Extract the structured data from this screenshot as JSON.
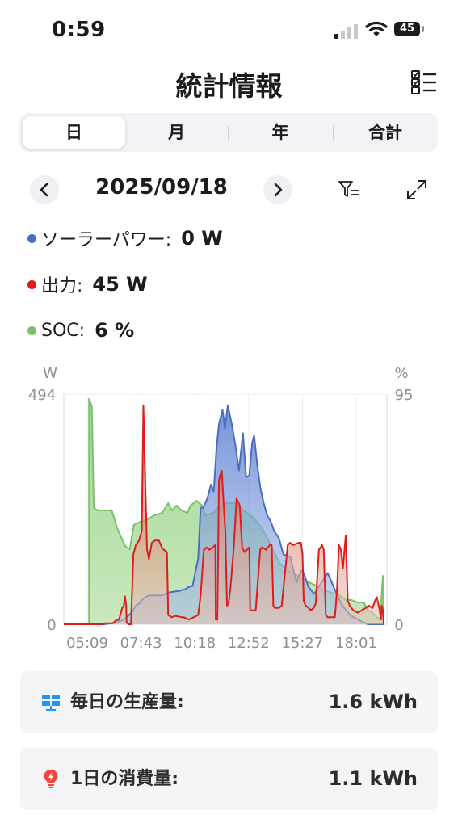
{
  "status_bar": {
    "time": "0:59",
    "battery": "45"
  },
  "header": {
    "title": "統計情報"
  },
  "tabs": [
    {
      "label": "日",
      "active": true
    },
    {
      "label": "月",
      "active": false
    },
    {
      "label": "年",
      "active": false
    },
    {
      "label": "合計",
      "active": false
    }
  ],
  "date_nav": {
    "date": "2025/09/18"
  },
  "legend": [
    {
      "label": "ソーラーパワー:",
      "value": "0 W",
      "color": "#4a6fbf"
    },
    {
      "label": "出力:",
      "value": "45 W",
      "color": "#e01b1b"
    },
    {
      "label": "SOC:",
      "value": "6 %",
      "color": "#7cc26b"
    }
  ],
  "chart_data": {
    "type": "area",
    "left_axis": {
      "unit": "W",
      "max_label": "494",
      "min_label": "0",
      "range": [
        0,
        494
      ]
    },
    "right_axis": {
      "unit": "%",
      "max_label": "95",
      "min_label": "0",
      "range": [
        0,
        95
      ]
    },
    "x_tick_labels": [
      "05:09",
      "07:43",
      "10:18",
      "12:52",
      "15:27",
      "18:01"
    ],
    "x_range_minutes": [
      300,
      1108
    ],
    "grid": true,
    "series": [
      {
        "name": "SOC",
        "color": "#7cc26b",
        "axis": "right",
        "points": [
          [
            363,
            0
          ],
          [
            363,
            93
          ],
          [
            370,
            90
          ],
          [
            375,
            48
          ],
          [
            385,
            47
          ],
          [
            403,
            47
          ],
          [
            420,
            47
          ],
          [
            433,
            40
          ],
          [
            443,
            36
          ],
          [
            455,
            32
          ],
          [
            465,
            31
          ],
          [
            475,
            41
          ],
          [
            486,
            42
          ],
          [
            506,
            43
          ],
          [
            526,
            45
          ],
          [
            546,
            46
          ],
          [
            561,
            50
          ],
          [
            570,
            47
          ],
          [
            582,
            49
          ],
          [
            594,
            47
          ],
          [
            609,
            46
          ],
          [
            617,
            49
          ],
          [
            632,
            51
          ],
          [
            646,
            49
          ],
          [
            653,
            45
          ],
          [
            674,
            46
          ],
          [
            684,
            48
          ],
          [
            705,
            50
          ],
          [
            728,
            50
          ],
          [
            741,
            48
          ],
          [
            759,
            46
          ],
          [
            774,
            44
          ],
          [
            794,
            40
          ],
          [
            811,
            35
          ],
          [
            825,
            30
          ],
          [
            841,
            25
          ],
          [
            860,
            22
          ],
          [
            885,
            20
          ],
          [
            905,
            18
          ],
          [
            930,
            16
          ],
          [
            950,
            14
          ],
          [
            970,
            13
          ],
          [
            990,
            12
          ],
          [
            1005,
            10
          ],
          [
            1020,
            10
          ],
          [
            1035,
            9
          ],
          [
            1050,
            9
          ],
          [
            1060,
            6
          ],
          [
            1070,
            5
          ],
          [
            1083,
            3
          ],
          [
            1091,
            2
          ],
          [
            1098,
            20
          ],
          [
            1099,
            5
          ],
          [
            1100,
            0
          ]
        ]
      },
      {
        "name": "ソーラーパワー",
        "color": "#4a6fbf",
        "axis": "left",
        "points": [
          [
            300,
            0
          ],
          [
            360,
            0
          ],
          [
            380,
            0
          ],
          [
            400,
            0
          ],
          [
            430,
            3
          ],
          [
            450,
            10
          ],
          [
            470,
            25
          ],
          [
            480,
            40
          ],
          [
            490,
            45
          ],
          [
            498,
            55
          ],
          [
            512,
            62
          ],
          [
            526,
            62
          ],
          [
            546,
            62
          ],
          [
            560,
            68
          ],
          [
            575,
            70
          ],
          [
            590,
            72
          ],
          [
            603,
            75
          ],
          [
            613,
            80
          ],
          [
            622,
            82
          ],
          [
            632,
            125
          ],
          [
            636,
            140
          ],
          [
            642,
            250
          ],
          [
            648,
            250
          ],
          [
            659,
            270
          ],
          [
            668,
            300
          ],
          [
            675,
            285
          ],
          [
            682,
            380
          ],
          [
            688,
            430
          ],
          [
            697,
            460
          ],
          [
            703,
            420
          ],
          [
            710,
            470
          ],
          [
            720,
            430
          ],
          [
            729,
            385
          ],
          [
            738,
            330
          ],
          [
            748,
            410
          ],
          [
            756,
            315
          ],
          [
            764,
            320
          ],
          [
            771,
            390
          ],
          [
            776,
            405
          ],
          [
            784,
            340
          ],
          [
            792,
            290
          ],
          [
            800,
            260
          ],
          [
            808,
            235
          ],
          [
            818,
            220
          ],
          [
            826,
            200
          ],
          [
            838,
            185
          ],
          [
            849,
            150
          ],
          [
            866,
            145
          ],
          [
            882,
            90
          ],
          [
            893,
            115
          ],
          [
            900,
            110
          ],
          [
            912,
            80
          ],
          [
            926,
            65
          ],
          [
            941,
            85
          ],
          [
            960,
            110
          ],
          [
            975,
            80
          ],
          [
            993,
            45
          ],
          [
            1006,
            30
          ],
          [
            1016,
            20
          ],
          [
            1025,
            15
          ],
          [
            1040,
            8
          ],
          [
            1060,
            0
          ],
          [
            1100,
            0
          ]
        ]
      },
      {
        "name": "出力",
        "color": "#e01b1b",
        "axis": "left",
        "points": [
          [
            300,
            0
          ],
          [
            400,
            0
          ],
          [
            402,
            2
          ],
          [
            422,
            2
          ],
          [
            430,
            8
          ],
          [
            438,
            10
          ],
          [
            446,
            35
          ],
          [
            450,
            40
          ],
          [
            453,
            60
          ],
          [
            456,
            40
          ],
          [
            457,
            5
          ],
          [
            461,
            0
          ],
          [
            468,
            0
          ],
          [
            474,
            150
          ],
          [
            480,
            170
          ],
          [
            488,
            180
          ],
          [
            495,
            200
          ],
          [
            499,
            470
          ],
          [
            503,
            330
          ],
          [
            508,
            160
          ],
          [
            513,
            140
          ],
          [
            520,
            175
          ],
          [
            528,
            180
          ],
          [
            538,
            180
          ],
          [
            545,
            165
          ],
          [
            550,
            160
          ],
          [
            558,
            155
          ],
          [
            561,
            20
          ],
          [
            570,
            15
          ],
          [
            580,
            18
          ],
          [
            594,
            15
          ],
          [
            600,
            15
          ],
          [
            612,
            10
          ],
          [
            625,
            15
          ],
          [
            636,
            20
          ],
          [
            642,
            60
          ],
          [
            650,
            160
          ],
          [
            657,
            165
          ],
          [
            664,
            160
          ],
          [
            672,
            165
          ],
          [
            679,
            170
          ],
          [
            680,
            10
          ],
          [
            684,
            10
          ],
          [
            688,
            310
          ],
          [
            695,
            330
          ],
          [
            701,
            240
          ],
          [
            704,
            200
          ],
          [
            708,
            40
          ],
          [
            712,
            45
          ],
          [
            717,
            80
          ],
          [
            725,
            165
          ],
          [
            732,
            270
          ],
          [
            740,
            255
          ],
          [
            746,
            165
          ],
          [
            752,
            155
          ],
          [
            758,
            160
          ],
          [
            764,
            165
          ],
          [
            766,
            30
          ],
          [
            770,
            30
          ],
          [
            780,
            30
          ],
          [
            791,
            160
          ],
          [
            796,
            165
          ],
          [
            806,
            160
          ],
          [
            815,
            170
          ],
          [
            820,
            170
          ],
          [
            824,
            40
          ],
          [
            828,
            35
          ],
          [
            838,
            35
          ],
          [
            845,
            40
          ],
          [
            860,
            170
          ],
          [
            866,
            175
          ],
          [
            872,
            170
          ],
          [
            888,
            175
          ],
          [
            893,
            175
          ],
          [
            897,
            150
          ],
          [
            900,
            50
          ],
          [
            905,
            40
          ],
          [
            912,
            35
          ],
          [
            918,
            30
          ],
          [
            925,
            35
          ],
          [
            930,
            45
          ],
          [
            938,
            160
          ],
          [
            946,
            170
          ],
          [
            950,
            160
          ],
          [
            955,
            20
          ],
          [
            960,
            15
          ],
          [
            978,
            15
          ],
          [
            983,
            70
          ],
          [
            988,
            170
          ],
          [
            993,
            160
          ],
          [
            998,
            120
          ],
          [
            1005,
            190
          ],
          [
            1010,
            50
          ],
          [
            1015,
            40
          ],
          [
            1024,
            30
          ],
          [
            1035,
            25
          ],
          [
            1045,
            30
          ],
          [
            1055,
            35
          ],
          [
            1062,
            40
          ],
          [
            1072,
            35
          ],
          [
            1078,
            50
          ],
          [
            1083,
            58
          ],
          [
            1090,
            30
          ],
          [
            1093,
            10
          ],
          [
            1095,
            40
          ],
          [
            1098,
            30
          ],
          [
            1100,
            0
          ]
        ]
      }
    ]
  },
  "cards": [
    {
      "label": "毎日の生産量:",
      "value": "1.6 kWh",
      "icon": "solar-panel-icon",
      "icon_color": "#2196f3"
    },
    {
      "label": "1日の消費量:",
      "value": "1.1 kWh",
      "icon": "lightbulb-icon",
      "icon_color": "#f0463c"
    }
  ]
}
